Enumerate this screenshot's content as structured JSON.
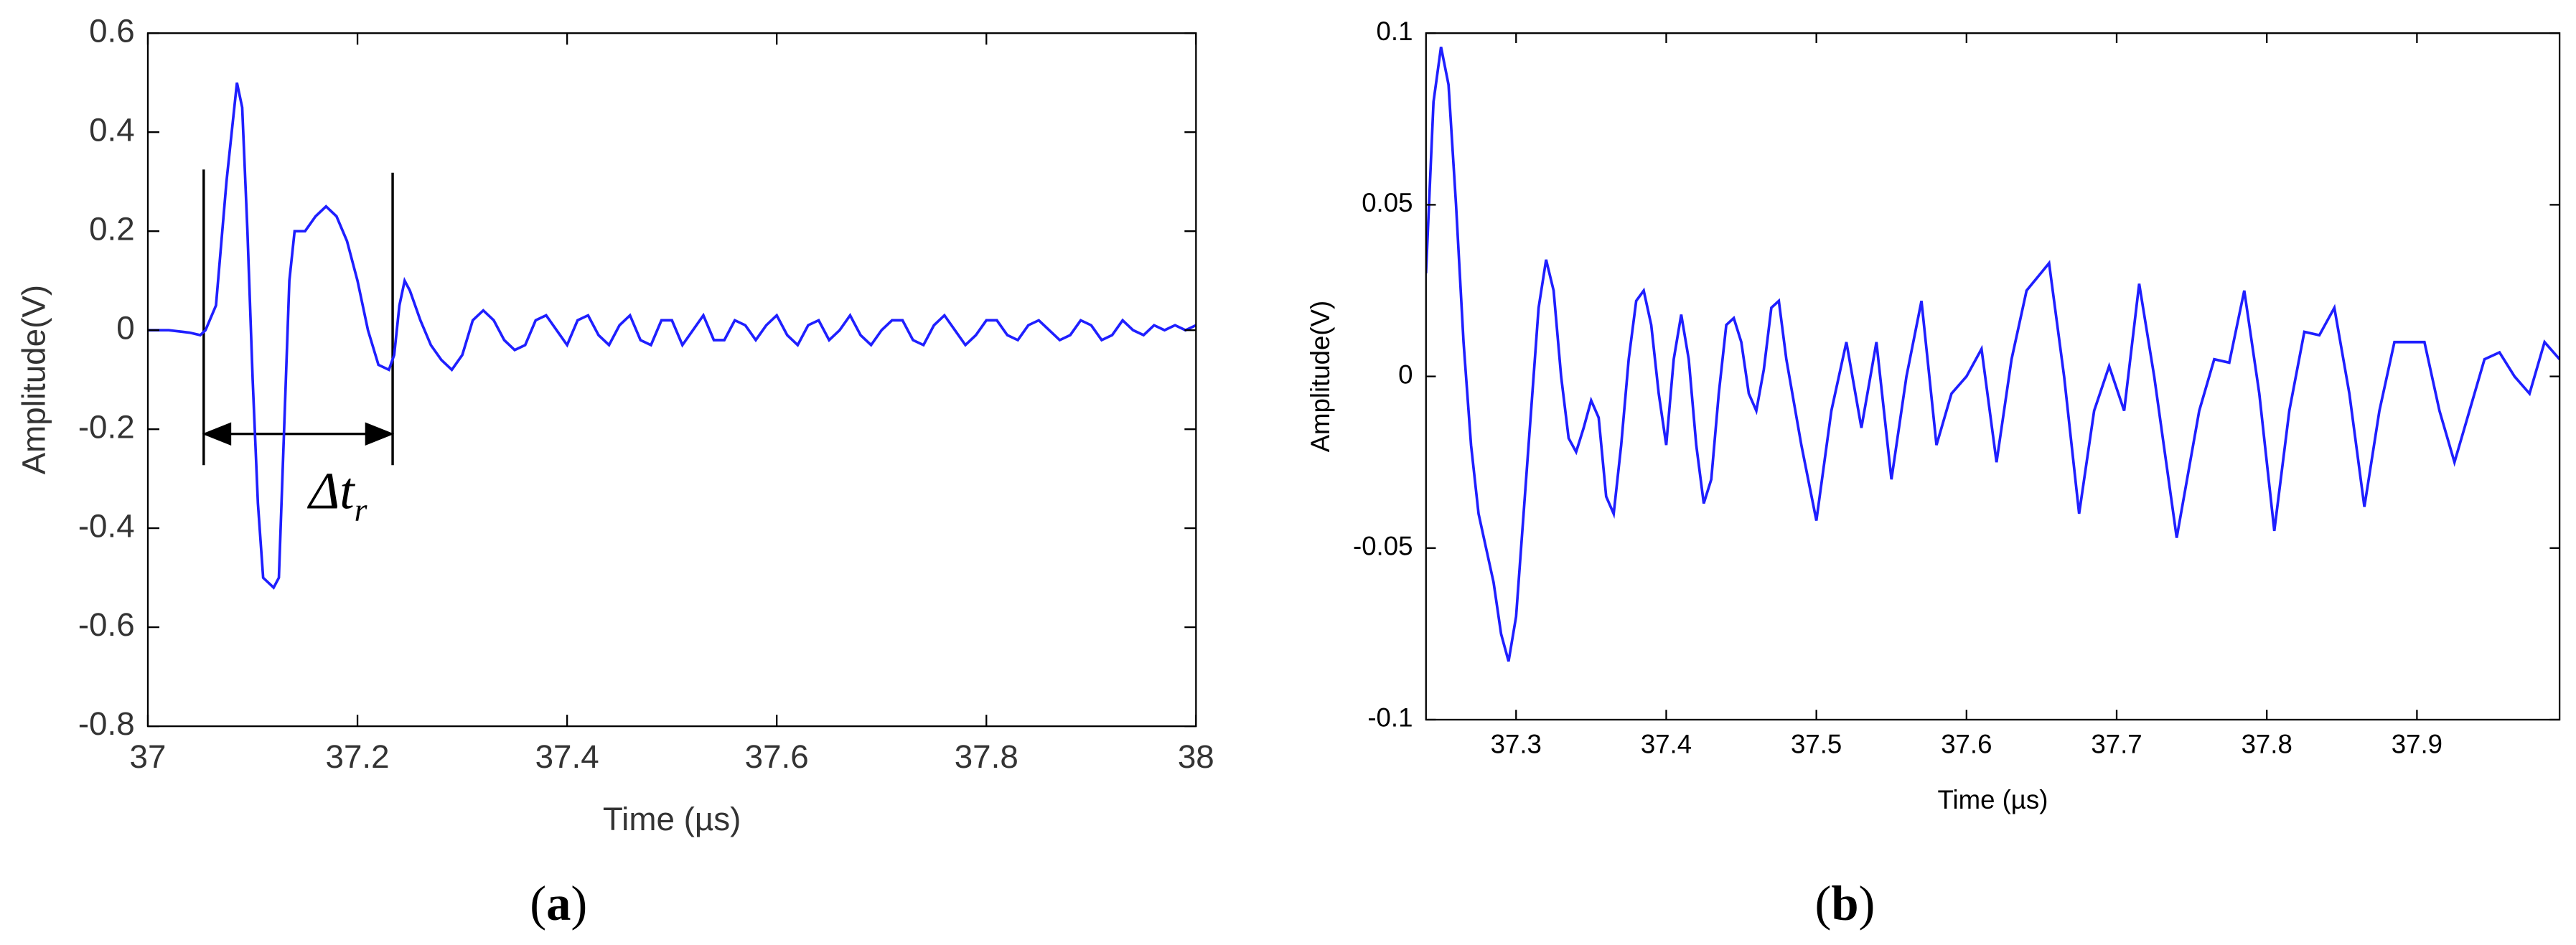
{
  "chart_data": [
    {
      "type": "line",
      "xlabel": "Time (µs)",
      "ylabel": "Amplitude(V)",
      "caption_label": "a",
      "grid": false,
      "annotation": {
        "text": "Δt",
        "subscript": "r"
      },
      "xlim": [
        37,
        38
      ],
      "ylim": [
        -0.8,
        0.6
      ],
      "xticks": [
        37,
        37.2,
        37.4,
        37.6,
        37.8,
        38
      ],
      "yticks": [
        -0.8,
        -0.6,
        -0.4,
        -0.2,
        0,
        0.2,
        0.4,
        0.6
      ],
      "series": [
        {
          "color": "#1f1fff",
          "x": [
            37,
            37.02,
            37.04,
            37.05,
            37.055,
            37.065,
            37.075,
            37.085,
            37.09,
            37.095,
            37.1,
            37.105,
            37.11,
            37.12,
            37.125,
            37.13,
            37.135,
            37.14,
            37.15,
            37.16,
            37.17,
            37.18,
            37.19,
            37.2,
            37.21,
            37.22,
            37.23,
            37.235,
            37.24,
            37.245,
            37.25,
            37.26,
            37.27,
            37.28,
            37.29,
            37.3,
            37.31,
            37.32,
            37.33,
            37.34,
            37.35,
            37.36,
            37.37,
            37.38,
            37.39,
            37.4,
            37.41,
            37.42,
            37.43,
            37.44,
            37.45,
            37.46,
            37.47,
            37.48,
            37.49,
            37.5,
            37.51,
            37.52,
            37.53,
            37.54,
            37.55,
            37.56,
            37.57,
            37.58,
            37.59,
            37.6,
            37.61,
            37.62,
            37.63,
            37.64,
            37.65,
            37.66,
            37.67,
            37.68,
            37.69,
            37.7,
            37.71,
            37.72,
            37.73,
            37.74,
            37.75,
            37.76,
            37.77,
            37.78,
            37.79,
            37.8,
            37.81,
            37.82,
            37.83,
            37.84,
            37.85,
            37.86,
            37.87,
            37.88,
            37.89,
            37.9,
            37.91,
            37.92,
            37.93,
            37.94,
            37.95,
            37.96,
            37.97,
            37.98,
            37.99,
            38
          ],
          "values": [
            0,
            0,
            -0.005,
            -0.01,
            0,
            0.05,
            0.3,
            0.5,
            0.45,
            0.2,
            -0.1,
            -0.35,
            -0.5,
            -0.52,
            -0.5,
            -0.2,
            0.1,
            0.2,
            0.2,
            0.23,
            0.25,
            0.23,
            0.18,
            0.1,
            0,
            -0.07,
            -0.08,
            -0.05,
            0.05,
            0.1,
            0.08,
            0.02,
            -0.03,
            -0.06,
            -0.08,
            -0.05,
            0.02,
            0.04,
            0.02,
            -0.02,
            -0.04,
            -0.03,
            0.02,
            0.03,
            0.0,
            -0.03,
            0.02,
            0.03,
            -0.01,
            -0.03,
            0.01,
            0.03,
            -0.02,
            -0.03,
            0.02,
            0.02,
            -0.03,
            0.0,
            0.03,
            -0.02,
            -0.02,
            0.02,
            0.01,
            -0.02,
            0.01,
            0.03,
            -0.01,
            -0.03,
            0.01,
            0.02,
            -0.02,
            0.0,
            0.03,
            -0.01,
            -0.03,
            0.0,
            0.02,
            0.02,
            -0.02,
            -0.03,
            0.01,
            0.03,
            0.0,
            -0.03,
            -0.01,
            0.02,
            0.02,
            -0.01,
            -0.02,
            0.01,
            0.02,
            0.0,
            -0.02,
            -0.01,
            0.02,
            0.01,
            -0.02,
            -0.01,
            0.02,
            0.0,
            -0.01,
            0.01,
            0.0,
            0.01,
            0.0,
            0.01
          ]
        }
      ]
    },
    {
      "type": "line",
      "xlabel": "Time (µs)",
      "ylabel": "Amplitude(V)",
      "caption_label": "b",
      "grid": false,
      "xlim": [
        37.24,
        37.995
      ],
      "ylim": [
        -0.1,
        0.1
      ],
      "xticks": [
        37.3,
        37.4,
        37.5,
        37.6,
        37.7,
        37.8,
        37.9
      ],
      "yticks": [
        -0.1,
        -0.05,
        0,
        0.05,
        0.1
      ],
      "series": [
        {
          "color": "#1f1fff",
          "x": [
            37.24,
            37.245,
            37.25,
            37.255,
            37.26,
            37.265,
            37.27,
            37.275,
            37.28,
            37.285,
            37.29,
            37.295,
            37.3,
            37.305,
            37.31,
            37.315,
            37.32,
            37.325,
            37.33,
            37.335,
            37.34,
            37.345,
            37.35,
            37.355,
            37.36,
            37.365,
            37.37,
            37.375,
            37.38,
            37.385,
            37.39,
            37.395,
            37.4,
            37.405,
            37.41,
            37.415,
            37.42,
            37.425,
            37.43,
            37.435,
            37.44,
            37.445,
            37.45,
            37.455,
            37.46,
            37.465,
            37.47,
            37.475,
            37.48,
            37.49,
            37.5,
            37.51,
            37.52,
            37.53,
            37.54,
            37.55,
            37.56,
            37.57,
            37.58,
            37.59,
            37.6,
            37.61,
            37.62,
            37.63,
            37.64,
            37.655,
            37.665,
            37.675,
            37.685,
            37.695,
            37.705,
            37.715,
            37.725,
            37.74,
            37.755,
            37.765,
            37.775,
            37.785,
            37.795,
            37.805,
            37.815,
            37.825,
            37.835,
            37.845,
            37.855,
            37.865,
            37.875,
            37.885,
            37.895,
            37.905,
            37.915,
            37.925,
            37.935,
            37.945,
            37.955,
            37.965,
            37.975,
            37.985,
            37.995
          ],
          "values": [
            0.03,
            0.08,
            0.096,
            0.085,
            0.05,
            0.01,
            -0.02,
            -0.04,
            -0.05,
            -0.06,
            -0.075,
            -0.083,
            -0.07,
            -0.04,
            -0.01,
            0.02,
            0.034,
            0.025,
            0,
            -0.018,
            -0.022,
            -0.015,
            -0.007,
            -0.012,
            -0.035,
            -0.04,
            -0.02,
            0.005,
            0.022,
            0.025,
            0.015,
            -0.005,
            -0.02,
            0.005,
            0.018,
            0.005,
            -0.02,
            -0.037,
            -0.03,
            -0.005,
            0.015,
            0.017,
            0.01,
            -0.005,
            -0.01,
            0.002,
            0.02,
            0.022,
            0.005,
            -0.02,
            -0.042,
            -0.01,
            0.01,
            -0.015,
            0.01,
            -0.03,
            0.0,
            0.022,
            -0.02,
            -0.005,
            0.0,
            0.008,
            -0.025,
            0.005,
            0.025,
            0.033,
            0.0,
            -0.04,
            -0.01,
            0.003,
            -0.01,
            0.027,
            0.0,
            -0.047,
            -0.01,
            0.005,
            0.004,
            0.025,
            -0.005,
            -0.045,
            -0.01,
            0.013,
            0.012,
            0.02,
            -0.005,
            -0.038,
            -0.01,
            0.01,
            0.01,
            0.01,
            -0.01,
            -0.025,
            -0.01,
            0.005,
            0.007,
            0.0,
            -0.005,
            0.01,
            0.005
          ]
        }
      ]
    }
  ]
}
